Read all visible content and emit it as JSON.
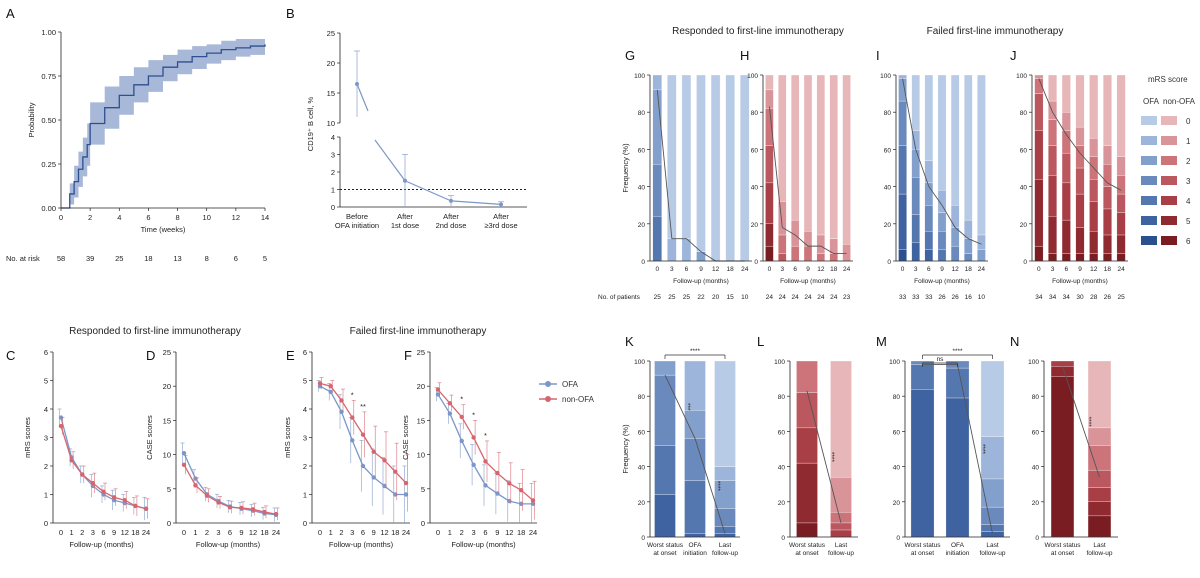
{
  "colors": {
    "ofa": "#7b97c9",
    "nonofa": "#d5666f",
    "band": "#9fb0d4",
    "km": "#2f4f8f",
    "axis": "#222222",
    "dot": "#222222"
  },
  "headers": {
    "left_resp": "Responded to first-line immunotherapy",
    "left_fail": "Failed first-line immunotherapy",
    "right_resp": "Responded to first-line immunotherapy",
    "right_fail": "Failed first-line immunotherapy"
  },
  "legend_ef": {
    "ofa": "OFA",
    "nonofa": "non-OFA"
  },
  "legend_mrs": {
    "title": "mRS score",
    "col1": "OFA",
    "col2": "non-OFA",
    "levels": [
      "0",
      "1",
      "2",
      "3",
      "4",
      "5",
      "6"
    ]
  },
  "chart_data": [
    {
      "id": "A",
      "panel_label": "A",
      "type": "line",
      "xlabel": "Time (weeks)",
      "ylabel": "Probability",
      "xticks": [
        "0",
        "2",
        "4",
        "6",
        "8",
        "10",
        "12",
        "14"
      ],
      "yticks": [
        "0.00",
        "0.25",
        "0.50",
        "0.75",
        "1.00"
      ],
      "xlim": [
        0,
        14
      ],
      "ylim": [
        0,
        1
      ],
      "x": [
        0,
        0.6,
        0.9,
        1.2,
        1.5,
        1.8,
        2,
        3,
        4,
        5,
        6,
        7,
        8,
        9,
        10,
        11,
        12,
        13,
        14
      ],
      "y": [
        0,
        0.08,
        0.15,
        0.22,
        0.29,
        0.36,
        0.48,
        0.57,
        0.64,
        0.7,
        0.75,
        0.8,
        0.83,
        0.86,
        0.88,
        0.9,
        0.91,
        0.92,
        0.93
      ],
      "lower": [
        0,
        0.02,
        0.06,
        0.12,
        0.18,
        0.24,
        0.36,
        0.45,
        0.53,
        0.6,
        0.66,
        0.72,
        0.76,
        0.79,
        0.82,
        0.84,
        0.86,
        0.87,
        0.88
      ],
      "upper": [
        0,
        0.14,
        0.24,
        0.32,
        0.4,
        0.48,
        0.6,
        0.69,
        0.75,
        0.8,
        0.84,
        0.87,
        0.9,
        0.92,
        0.93,
        0.95,
        0.96,
        0.96,
        0.97
      ],
      "at_risk_label": "No. at risk",
      "at_risk": [
        "58",
        "39",
        "25",
        "18",
        "13",
        "8",
        "6",
        "5"
      ]
    },
    {
      "id": "B",
      "panel_label": "B",
      "type": "line",
      "ylabel": "CD19⁺ B cell, %",
      "categories": [
        "Before OFA initiation",
        "After 1st dose",
        "After 2nd dose",
        "After ≥3rd dose"
      ],
      "values": [
        16.5,
        1.5,
        0.35,
        0.15
      ],
      "err": [
        5.5,
        1.5,
        0.3,
        0.15
      ],
      "yticks": [
        "0",
        "1",
        "2",
        "3",
        "4",
        "10",
        "15",
        "20",
        "25"
      ],
      "reference_line": 1
    },
    {
      "id": "C",
      "panel_label": "C",
      "type": "line",
      "xlabel": "Follow-up (months)",
      "ylabel": "mRS scores",
      "xcat": [
        "0",
        "1",
        "2",
        "3",
        "6",
        "9",
        "12",
        "18",
        "24"
      ],
      "yticks": [
        "0",
        "1",
        "2",
        "3",
        "4",
        "5",
        "6"
      ],
      "ylim": [
        0,
        6
      ],
      "series": [
        {
          "name": "OFA",
          "values": [
            3.7,
            2.3,
            1.7,
            1.3,
            1.0,
            0.8,
            0.7,
            0.6,
            0.5
          ],
          "err": [
            0.3,
            0.3,
            0.3,
            0.4,
            0.3,
            0.35,
            0.3,
            0.3,
            0.4
          ]
        },
        {
          "name": "non-OFA",
          "values": [
            3.4,
            2.2,
            1.7,
            1.4,
            1.1,
            0.9,
            0.8,
            0.6,
            0.5
          ],
          "err": [
            0.3,
            0.3,
            0.3,
            0.35,
            0.3,
            0.3,
            0.3,
            0.35,
            0.35
          ]
        }
      ]
    },
    {
      "id": "D",
      "panel_label": "D",
      "type": "line",
      "xlabel": "Follow-up (months)",
      "ylabel": "CASE scores",
      "xcat": [
        "0",
        "1",
        "2",
        "3",
        "6",
        "9",
        "12",
        "18",
        "24"
      ],
      "yticks": [
        "0",
        "5",
        "10",
        "15",
        "20",
        "25"
      ],
      "ylim": [
        0,
        25
      ],
      "series": [
        {
          "name": "OFA",
          "values": [
            10.2,
            6.5,
            4.2,
            3.2,
            2.4,
            2.1,
            1.8,
            1.4,
            1.2
          ],
          "err": [
            1.5,
            1.3,
            1.0,
            1.0,
            0.9,
            0.9,
            0.9,
            0.9,
            1.0
          ]
        },
        {
          "name": "non-OFA",
          "values": [
            8.5,
            5.5,
            4,
            3,
            2.3,
            2.2,
            2.0,
            1.6,
            1.3
          ],
          "err": [
            1.4,
            1.1,
            1.0,
            0.9,
            0.9,
            0.9,
            0.9,
            0.9,
            0.9
          ]
        }
      ]
    },
    {
      "id": "E",
      "panel_label": "E",
      "type": "line",
      "xlabel": "Follow-up (months)",
      "ylabel": "mRS scores",
      "xcat": [
        "0",
        "1",
        "2",
        "3",
        "6",
        "9",
        "12",
        "18",
        "24"
      ],
      "yticks": [
        "0",
        "1",
        "2",
        "3",
        "4",
        "5",
        "6"
      ],
      "ylim": [
        0,
        6
      ],
      "series": [
        {
          "name": "OFA",
          "values": [
            4.8,
            4.6,
            3.9,
            2.9,
            2.0,
            1.6,
            1.3,
            1.0,
            1.0
          ],
          "err": [
            0.2,
            0.3,
            0.6,
            0.8,
            0.9,
            1.0,
            1.0,
            1.0,
            1.0
          ]
        },
        {
          "name": "non-OFA",
          "values": [
            4.9,
            4.8,
            4.3,
            3.7,
            3.1,
            2.5,
            2.2,
            1.8,
            1.4
          ],
          "err": [
            0.2,
            0.2,
            0.4,
            0.6,
            0.8,
            0.9,
            1.0,
            1.0,
            1.0
          ]
        }
      ],
      "annotations": [
        {
          "xcat": "3",
          "text": "*"
        },
        {
          "xcat": "6",
          "text": "**"
        }
      ]
    },
    {
      "id": "F",
      "panel_label": "F",
      "type": "line",
      "xlabel": "Follow-up (months)",
      "ylabel": "CASE scores",
      "xcat": [
        "0",
        "1",
        "2",
        "3",
        "6",
        "9",
        "12",
        "18",
        "24"
      ],
      "yticks": [
        "0",
        "5",
        "10",
        "15",
        "20",
        "25"
      ],
      "ylim": [
        0,
        25
      ],
      "series": [
        {
          "name": "OFA",
          "values": [
            18.8,
            16.0,
            12.0,
            8.5,
            5.5,
            4.3,
            3.2,
            2.8,
            2.8
          ],
          "err": [
            1.0,
            1.5,
            2.5,
            3.0,
            3.0,
            3.0,
            3.0,
            3.0,
            3.0
          ]
        },
        {
          "name": "non-OFA",
          "values": [
            19.5,
            17.5,
            15.5,
            12.5,
            9.0,
            7.3,
            5.8,
            4.8,
            3.3
          ],
          "err": [
            1.0,
            1.2,
            1.8,
            2.5,
            3.0,
            3.0,
            3.0,
            3.0,
            2.8
          ]
        }
      ],
      "annotations": [
        {
          "xcat": "2",
          "text": "*"
        },
        {
          "xcat": "3",
          "text": "*"
        },
        {
          "xcat": "6",
          "text": "*"
        }
      ]
    },
    {
      "id": "G",
      "panel_label": "G",
      "type": "bar",
      "stacked": true,
      "palette": "ofa",
      "xlabel": "Follow-up (months)",
      "ylabel": "Frequency (%)",
      "categories": [
        "0",
        "3",
        "6",
        "9",
        "12",
        "18",
        "24"
      ],
      "yticks": [
        "0",
        "20",
        "40",
        "60",
        "80",
        "100"
      ],
      "levels": [
        "6",
        "5",
        "4",
        "3",
        "2",
        "1",
        "0"
      ],
      "stacks": [
        [
          0,
          0,
          24,
          28,
          40,
          8,
          0
        ],
        [
          0,
          0,
          0,
          0,
          0,
          12,
          88
        ],
        [
          0,
          0,
          0,
          0,
          0,
          12,
          88
        ],
        [
          0,
          0,
          0,
          0,
          5,
          0,
          95
        ],
        [
          0,
          0,
          0,
          0,
          0,
          0,
          100
        ],
        [
          0,
          0,
          0,
          0,
          0,
          0,
          100
        ],
        [
          0,
          0,
          0,
          0,
          0,
          0,
          100
        ]
      ],
      "trend": [
        92,
        12,
        12,
        5,
        0,
        0,
        0
      ],
      "patients_label": "No. of patients",
      "patients": [
        "25",
        "25",
        "25",
        "22",
        "20",
        "15",
        "10"
      ]
    },
    {
      "id": "H",
      "panel_label": "H",
      "type": "bar",
      "stacked": true,
      "palette": "nonofa",
      "xlabel": "Follow-up (months)",
      "categories": [
        "0",
        "3",
        "6",
        "9",
        "12",
        "18",
        "24"
      ],
      "yticks": [
        "0",
        "20",
        "40",
        "60",
        "80",
        "100"
      ],
      "levels": [
        "6",
        "5",
        "4",
        "3",
        "2",
        "1",
        "0"
      ],
      "stacks": [
        [
          8,
          12,
          22,
          20,
          20,
          10,
          8
        ],
        [
          0,
          0,
          0,
          4,
          10,
          18,
          68
        ],
        [
          0,
          0,
          0,
          0,
          8,
          14,
          78
        ],
        [
          0,
          0,
          0,
          0,
          8,
          8,
          84
        ],
        [
          0,
          0,
          0,
          0,
          4,
          10,
          86
        ],
        [
          0,
          0,
          0,
          0,
          4,
          8,
          88
        ],
        [
          0,
          0,
          0,
          0,
          0,
          9,
          91
        ]
      ],
      "trend": [
        83,
        18,
        14,
        8,
        8,
        4,
        4
      ],
      "patients": [
        "24",
        "24",
        "24",
        "24",
        "24",
        "24",
        "23"
      ]
    },
    {
      "id": "I",
      "panel_label": "I",
      "type": "bar",
      "stacked": true,
      "palette": "ofa",
      "xlabel": "Follow-up (months)",
      "categories": [
        "0",
        "3",
        "6",
        "9",
        "12",
        "18",
        "24"
      ],
      "yticks": [
        "0",
        "20",
        "40",
        "60",
        "80",
        "100"
      ],
      "levels": [
        "6",
        "5",
        "4",
        "3",
        "2",
        "1",
        "0"
      ],
      "stacks": [
        [
          6,
          30,
          26,
          24,
          12,
          2,
          0
        ],
        [
          0,
          10,
          15,
          20,
          15,
          10,
          30
        ],
        [
          0,
          6,
          10,
          14,
          12,
          12,
          46
        ],
        [
          0,
          0,
          6,
          10,
          10,
          12,
          62
        ],
        [
          0,
          0,
          0,
          8,
          10,
          12,
          70
        ],
        [
          0,
          0,
          0,
          4,
          8,
          10,
          78
        ],
        [
          0,
          0,
          0,
          0,
          6,
          8,
          86
        ]
      ],
      "trend": [
        98,
        60,
        40,
        30,
        18,
        12,
        9
      ],
      "patients": [
        "33",
        "33",
        "33",
        "26",
        "26",
        "16",
        "10"
      ]
    },
    {
      "id": "J",
      "panel_label": "J",
      "type": "bar",
      "stacked": true,
      "palette": "nonofa",
      "xlabel": "Follow-up (months)",
      "categories": [
        "0",
        "3",
        "6",
        "9",
        "12",
        "18",
        "24"
      ],
      "yticks": [
        "0",
        "20",
        "40",
        "60",
        "80",
        "100"
      ],
      "levels": [
        "6",
        "5",
        "4",
        "3",
        "2",
        "1",
        "0"
      ],
      "stacks": [
        [
          8,
          36,
          26,
          20,
          8,
          2,
          0
        ],
        [
          4,
          20,
          22,
          16,
          14,
          10,
          14
        ],
        [
          4,
          18,
          20,
          16,
          12,
          10,
          20
        ],
        [
          4,
          14,
          18,
          14,
          12,
          10,
          28
        ],
        [
          4,
          12,
          16,
          12,
          12,
          10,
          34
        ],
        [
          4,
          10,
          14,
          12,
          12,
          10,
          38
        ],
        [
          4,
          10,
          12,
          10,
          10,
          10,
          44
        ]
      ],
      "trend": [
        98,
        80,
        68,
        58,
        50,
        42,
        38
      ],
      "patients": [
        "34",
        "34",
        "34",
        "30",
        "28",
        "26",
        "25"
      ]
    },
    {
      "id": "K",
      "panel_label": "K",
      "type": "bar",
      "stacked": true,
      "palette": "ofa",
      "ylabel": "Frequency (%)",
      "categories": [
        "Worst status at onset",
        "OFA initiation",
        "Last follow-up"
      ],
      "yticks": [
        "0",
        "20",
        "40",
        "60",
        "80",
        "100"
      ],
      "levels": [
        "6",
        "5",
        "4",
        "3",
        "2",
        "1",
        "0"
      ],
      "stacks": [
        [
          0,
          24,
          28,
          40,
          8,
          0,
          0
        ],
        [
          0,
          2,
          30,
          24,
          16,
          28,
          0
        ],
        [
          0,
          2,
          4,
          10,
          16,
          8,
          60
        ]
      ],
      "trend": [
        92,
        56,
        2
      ],
      "brackets": [
        {
          "text": "****",
          "from": 0,
          "to": 2
        }
      ],
      "stars": [
        {
          "between": [
            0,
            1
          ],
          "text": "***"
        },
        {
          "between": [
            1,
            2
          ],
          "text": "****"
        }
      ]
    },
    {
      "id": "L",
      "panel_label": "L",
      "type": "bar",
      "stacked": true,
      "palette": "nonofa",
      "categories": [
        "Worst status at onset",
        "Last follow-up"
      ],
      "yticks": [
        "0",
        "20",
        "40",
        "60",
        "80",
        "100"
      ],
      "levels": [
        "6",
        "5",
        "4",
        "3",
        "2",
        "1",
        "0"
      ],
      "stacks": [
        [
          8,
          34,
          20,
          20,
          18,
          0,
          0
        ],
        [
          0,
          0,
          4,
          4,
          6,
          20,
          66
        ]
      ],
      "trend": [
        83,
        8
      ],
      "stars": [
        {
          "between": [
            0,
            1
          ],
          "text": "****"
        }
      ]
    },
    {
      "id": "M",
      "panel_label": "M",
      "type": "bar",
      "stacked": true,
      "palette": "ofa",
      "categories": [
        "Worst status at onset",
        "OFA initiation",
        "Last follow-up"
      ],
      "yticks": [
        "0",
        "20",
        "40",
        "60",
        "80",
        "100"
      ],
      "levels": [
        "6",
        "5",
        "4",
        "3",
        "2",
        "1",
        "0"
      ],
      "stacks": [
        [
          0,
          84,
          14,
          2,
          0,
          0,
          0
        ],
        [
          0,
          79,
          17,
          4,
          0,
          0,
          0
        ],
        [
          0,
          3,
          4,
          10,
          16,
          24,
          43
        ]
      ],
      "trend": [
        98,
        98,
        2
      ],
      "brackets": [
        {
          "text": "****",
          "from": 0,
          "to": 2
        },
        {
          "text": "ns",
          "from": 0,
          "to": 1
        }
      ],
      "stars": [
        {
          "between": [
            1,
            2
          ],
          "text": "****"
        }
      ]
    },
    {
      "id": "N",
      "panel_label": "N",
      "type": "bar",
      "stacked": true,
      "palette": "nonofa",
      "categories": [
        "Worst status at onset",
        "Last follow-up"
      ],
      "yticks": [
        "0",
        "20",
        "40",
        "60",
        "80",
        "100"
      ],
      "levels": [
        "6",
        "5",
        "4",
        "3",
        "2",
        "1",
        "0"
      ],
      "stacks": [
        [
          91,
          6,
          3,
          0,
          0,
          0,
          0
        ],
        [
          12,
          8,
          8,
          10,
          14,
          10,
          38
        ]
      ],
      "trend": [
        97,
        34
      ],
      "stars": [
        {
          "between": [
            0,
            1
          ],
          "text": "****"
        }
      ]
    }
  ]
}
